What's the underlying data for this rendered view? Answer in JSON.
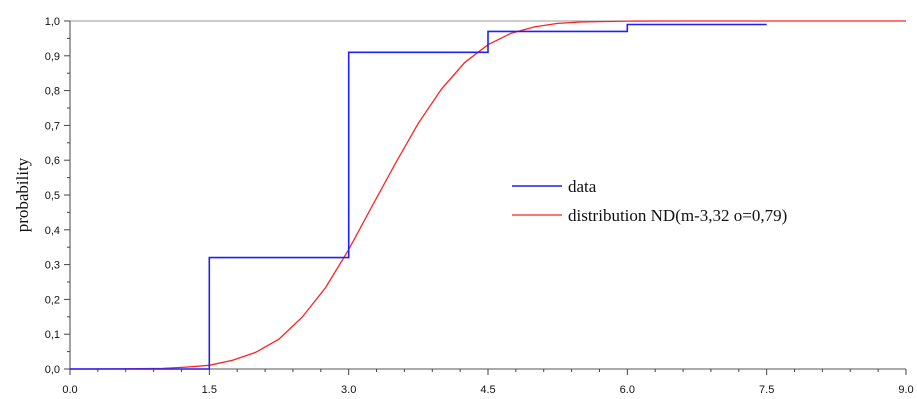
{
  "chart_data": {
    "type": "line",
    "title": "",
    "xlabel": "",
    "ylabel": "probability",
    "xlim": [
      0,
      9
    ],
    "ylim": [
      0,
      1
    ],
    "x_ticks": [
      "0.0",
      "1.5",
      "3.0",
      "4.5",
      "6.0",
      "7.5",
      "9.0"
    ],
    "x_tick_values": [
      0,
      1.5,
      3,
      4.5,
      6,
      7.5,
      9
    ],
    "y_ticks": [
      "0,0",
      "0,1",
      "0,2",
      "0,3",
      "0,4",
      "0,5",
      "0,6",
      "0,7",
      "0,8",
      "0,9",
      "1,0"
    ],
    "y_tick_values": [
      0,
      0.1,
      0.2,
      0.3,
      0.4,
      0.5,
      0.6,
      0.7,
      0.8,
      0.9,
      1.0
    ],
    "grid": false,
    "legend_position": "center-right",
    "series": [
      {
        "name": "data",
        "style": "step",
        "color": "#1f1fff",
        "x": [
          0,
          1.5,
          3.0,
          4.5,
          6.0,
          7.5
        ],
        "y": [
          0.0,
          0.32,
          0.91,
          0.97,
          0.99,
          0.99
        ]
      },
      {
        "name": "distribution ND(m-3,32 o=0,79)",
        "style": "curve",
        "color": "#ff2020",
        "x": [
          0,
          0.5,
          1.0,
          1.25,
          1.5,
          1.75,
          2.0,
          2.25,
          2.5,
          2.75,
          3.0,
          3.25,
          3.5,
          3.75,
          4.0,
          4.25,
          4.5,
          4.75,
          5.0,
          5.25,
          5.5,
          6.0,
          6.5,
          7.0,
          7.5,
          8.0,
          8.5,
          9.0
        ],
        "y": [
          0.0,
          0.0002,
          0.0017,
          0.0056,
          0.0107,
          0.025,
          0.048,
          0.086,
          0.149,
          0.233,
          0.343,
          0.467,
          0.589,
          0.706,
          0.805,
          0.881,
          0.932,
          0.965,
          0.983,
          0.993,
          0.997,
          0.9997,
          1.0,
          1.0,
          1.0,
          1.0,
          1.0,
          1.0
        ]
      }
    ]
  }
}
